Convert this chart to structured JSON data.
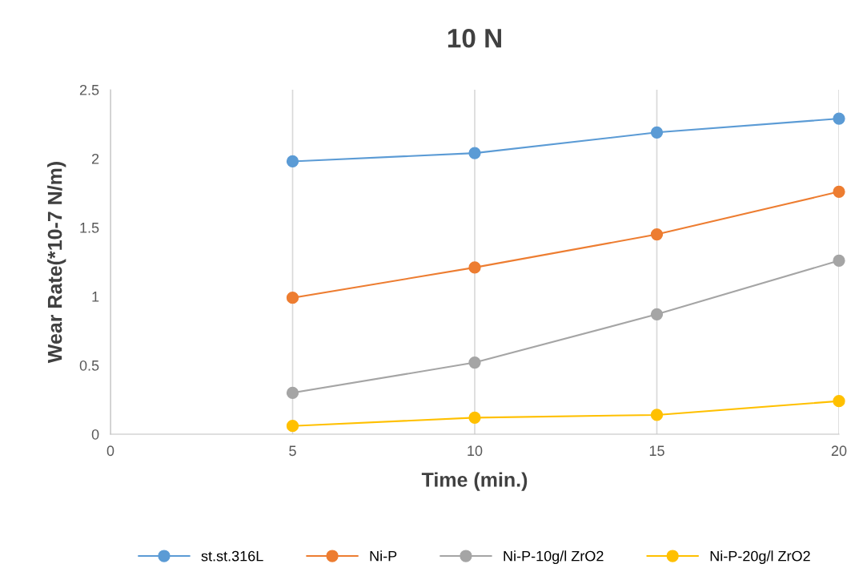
{
  "chart_data": {
    "type": "line",
    "title": "10 N",
    "xlabel": "Time (min.)",
    "ylabel": "Wear Rate(*10-7 N/m)",
    "x": [
      5,
      10,
      15,
      20
    ],
    "xlim": [
      0,
      20
    ],
    "xticks": [
      0,
      5,
      10,
      15,
      20
    ],
    "ylim": [
      0,
      2.5
    ],
    "yticks": [
      0,
      0.5,
      1,
      1.5,
      2,
      2.5
    ],
    "grid": "x",
    "legend": "bottom",
    "marker": "circle",
    "line_style": "solid",
    "series": [
      {
        "name": "st.st.316L",
        "color": "#5b9bd5",
        "values": [
          1.98,
          2.04,
          2.19,
          2.29
        ]
      },
      {
        "name": "Ni-P",
        "color": "#ed7d31",
        "values": [
          0.99,
          1.21,
          1.45,
          1.76
        ]
      },
      {
        "name": "Ni-P-10g/l ZrO2",
        "color": "#a5a5a5",
        "values": [
          0.3,
          0.52,
          0.87,
          1.26
        ]
      },
      {
        "name": "Ni-P-20g/l ZrO2",
        "color": "#ffc000",
        "values": [
          0.06,
          0.12,
          0.14,
          0.24
        ]
      }
    ]
  }
}
